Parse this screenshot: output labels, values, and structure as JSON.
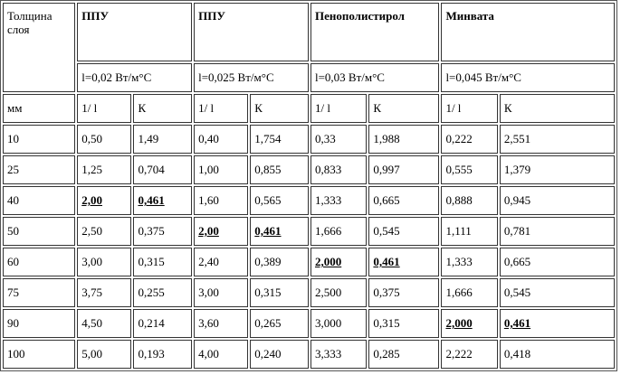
{
  "table": {
    "corner_header": "Толщина слоя",
    "unit_label": "мм",
    "materials": [
      {
        "name": "ППУ",
        "lambda": "l=0,02 Вт/м°С"
      },
      {
        "name": "ППУ",
        "lambda": "l=0,025 Вт/м°С"
      },
      {
        "name": "Пенополистирол",
        "lambda": "l=0,03 Вт/м°С"
      },
      {
        "name": "Минвата",
        "lambda": "l=0,045 Вт/м°С"
      }
    ],
    "sub_headers": [
      "1/ l",
      "К"
    ],
    "rows": [
      {
        "thickness": "10",
        "cells": [
          "0,50",
          "1,49",
          "0,40",
          "1,754",
          "0,33",
          "1,988",
          "0,222",
          "2,551"
        ]
      },
      {
        "thickness": "25",
        "cells": [
          "1,25",
          "0,704",
          "1,00",
          "0,855",
          "0,833",
          "0,997",
          "0,555",
          "1,379"
        ]
      },
      {
        "thickness": "40",
        "cells": [
          "2,00",
          "0,461",
          "1,60",
          "0,565",
          "1,333",
          "0,665",
          "0,888",
          "0,945"
        ]
      },
      {
        "thickness": "50",
        "cells": [
          "2,50",
          "0,375",
          "2,00",
          "0,461",
          "1,666",
          "0,545",
          "1,111",
          "0,781"
        ]
      },
      {
        "thickness": "60",
        "cells": [
          "3,00",
          "0,315",
          "2,40",
          "0,389",
          "2,000",
          "0,461",
          "1,333",
          "0,665"
        ]
      },
      {
        "thickness": "75",
        "cells": [
          "3,75",
          "0,255",
          "3,00",
          "0,315",
          "2,500",
          "0,375",
          "1,666",
          "0,545"
        ]
      },
      {
        "thickness": "90",
        "cells": [
          "4,50",
          "0,214",
          "3,60",
          "0,265",
          "3,000",
          "0,315",
          "2,000",
          "0,461"
        ]
      },
      {
        "thickness": "100",
        "cells": [
          "5,00",
          "0,193",
          "4,00",
          "0,240",
          "3,333",
          "0,285",
          "2,222",
          "0,418"
        ]
      }
    ]
  }
}
